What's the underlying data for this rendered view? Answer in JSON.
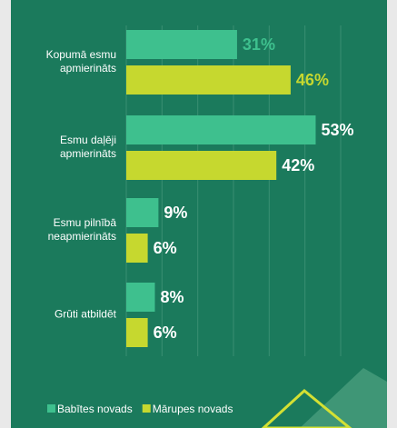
{
  "chart_data": {
    "type": "hbar",
    "categories": [
      "Kopumā esmu apmierināts",
      "Esmu daļēji apmierināts",
      "Esmu pilnībā neapmierināts",
      "Grūti atbildēt"
    ],
    "series": [
      {
        "name": "Babītes novads",
        "color": "#3ec08e",
        "values": [
          31,
          53,
          9,
          8
        ],
        "value_labels": [
          "31%",
          "53%",
          "9%",
          "8%"
        ]
      },
      {
        "name": "Mārupes novads",
        "color": "#c6d82f",
        "values": [
          46,
          42,
          6,
          6
        ],
        "value_labels": [
          "46%",
          "42%",
          "6%",
          "6%"
        ]
      }
    ],
    "xlim": [
      0,
      60
    ],
    "xticks": [
      0,
      10,
      20,
      30,
      40,
      50,
      60
    ],
    "grid": true
  }
}
